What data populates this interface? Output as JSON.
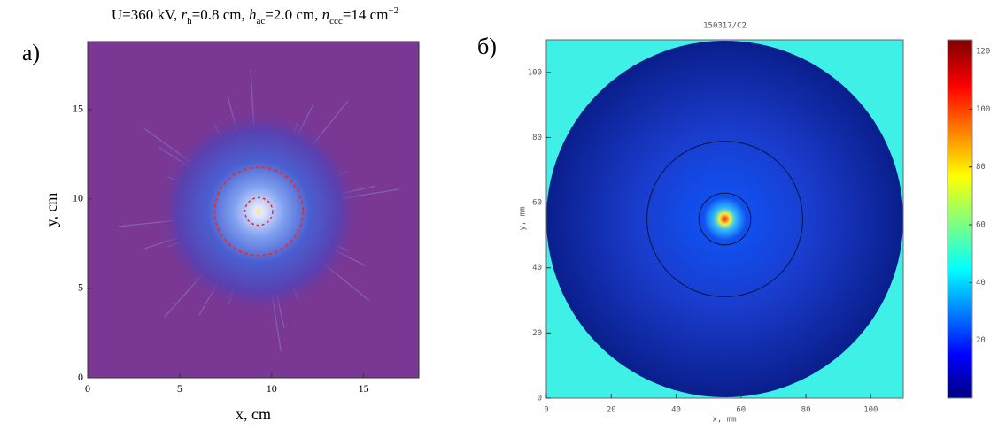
{
  "chart_data": [
    {
      "type": "heatmap",
      "panel_label": "а)",
      "title": [
        {
          "text": "U=360 kV, "
        },
        {
          "text": "r",
          "style": "italic"
        },
        {
          "text": "h",
          "style": "sub"
        },
        {
          "text": "=0.8 cm, "
        },
        {
          "text": "h",
          "style": "italic"
        },
        {
          "text": "ac",
          "style": "sub"
        },
        {
          "text": "=2.0 cm, "
        },
        {
          "text": "n",
          "style": "italic"
        },
        {
          "text": "ccc",
          "style": "sub"
        },
        {
          "text": "=14 cm"
        },
        {
          "text": "−2",
          "style": "sup"
        }
      ],
      "x_label": "x, cm",
      "y_label": "y, cm",
      "xlim": [
        0,
        18
      ],
      "ylim": [
        0,
        18.8
      ],
      "xticks": [
        0,
        5,
        10,
        15
      ],
      "yticks": [
        0,
        5,
        10,
        15
      ]
    },
    {
      "type": "heatmap",
      "panel_label": "б)",
      "title": "150317/C2",
      "x_label": "x, mm",
      "y_label": "y, mm",
      "xlim": [
        0,
        110
      ],
      "ylim": [
        0,
        110
      ],
      "xticks": [
        0,
        20,
        40,
        60,
        80,
        100
      ],
      "yticks": [
        0,
        20,
        40,
        60,
        80,
        100
      ],
      "colorbar": {
        "colormap": "jet",
        "lim": [
          0,
          124
        ],
        "ticks": [
          20,
          40,
          60,
          80,
          100,
          120
        ]
      }
    }
  ]
}
